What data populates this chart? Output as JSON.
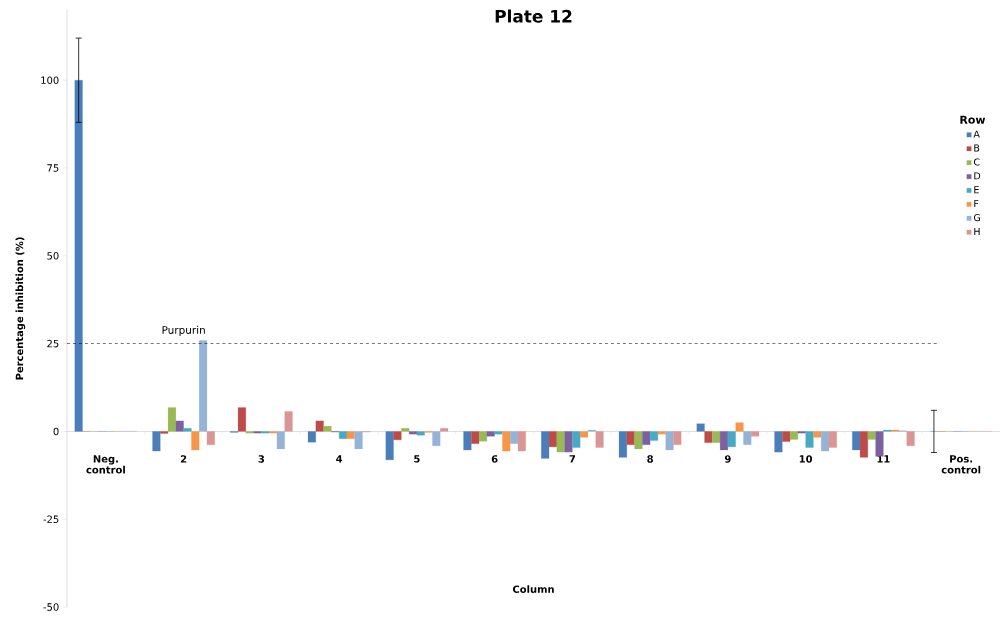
{
  "chart_data": {
    "type": "bar",
    "title": "Plate 12",
    "xlabel": "Column",
    "ylabel": "Percentage inhibition  (%)",
    "legend_title": "Row",
    "legend": "right",
    "grid": false,
    "categories": [
      "Neg. control",
      "2",
      "3",
      "4",
      "5",
      "6",
      "7",
      "8",
      "9",
      "10",
      "11",
      "Pos. control"
    ],
    "series": [
      {
        "name": "A",
        "color": "#4a7ebb",
        "values": [
          100,
          -5.6,
          -0.3,
          -3.1,
          -8.1,
          -5.3,
          -7.7,
          -7.4,
          2.2,
          -5.9,
          -5.3,
          0
        ],
        "errors": [
          12,
          null,
          null,
          null,
          null,
          null,
          null,
          null,
          null,
          null,
          null,
          6
        ]
      },
      {
        "name": "B",
        "color": "#be4b48",
        "values": [
          0,
          -0.6,
          6.8,
          3.0,
          -2.4,
          -3.5,
          -4.4,
          -3.8,
          -3.2,
          -2.9,
          -7.4,
          0
        ]
      },
      {
        "name": "C",
        "color": "#98b954",
        "values": [
          0,
          6.8,
          -0.5,
          1.5,
          0.9,
          -2.8,
          -5.9,
          -5.0,
          -3.2,
          -2.3,
          -2.3,
          0
        ]
      },
      {
        "name": "D",
        "color": "#7d60a0",
        "values": [
          0,
          3.0,
          -0.5,
          -0.2,
          -0.8,
          -1.4,
          -5.9,
          -3.8,
          -5.3,
          -0.5,
          -7.1,
          0
        ]
      },
      {
        "name": "E",
        "color": "#46aac5",
        "values": [
          0,
          0.9,
          -0.5,
          -2.1,
          -1.1,
          -0.8,
          -4.6,
          -2.6,
          -4.4,
          -4.6,
          0.4,
          0
        ]
      },
      {
        "name": "F",
        "color": "#f79646",
        "values": [
          0,
          -5.3,
          -0.5,
          -2.1,
          -0.3,
          -5.6,
          -1.7,
          -0.8,
          2.5,
          -1.7,
          0.4,
          0
        ]
      },
      {
        "name": "G",
        "color": "#95b3d7",
        "values": [
          0,
          25.9,
          -5.0,
          -5.0,
          -4.1,
          -3.5,
          0.4,
          -5.3,
          -3.8,
          -5.6,
          0.2,
          0
        ]
      },
      {
        "name": "H",
        "color": "#d99694",
        "values": [
          0,
          -3.8,
          5.7,
          -0.2,
          0.9,
          -5.6,
          -4.6,
          -3.8,
          -1.4,
          -4.6,
          -4.1,
          0
        ]
      }
    ],
    "ylim": [
      -50,
      120
    ],
    "yticks": [
      -50,
      -25,
      0,
      25,
      50,
      75,
      100
    ],
    "ref_lines": [
      {
        "axis": "y",
        "value": 25,
        "line_style": "dashed",
        "color": "#000000"
      }
    ],
    "annotations": [
      {
        "text": "Purpurin",
        "x": "2",
        "y": 25.9
      }
    ]
  }
}
